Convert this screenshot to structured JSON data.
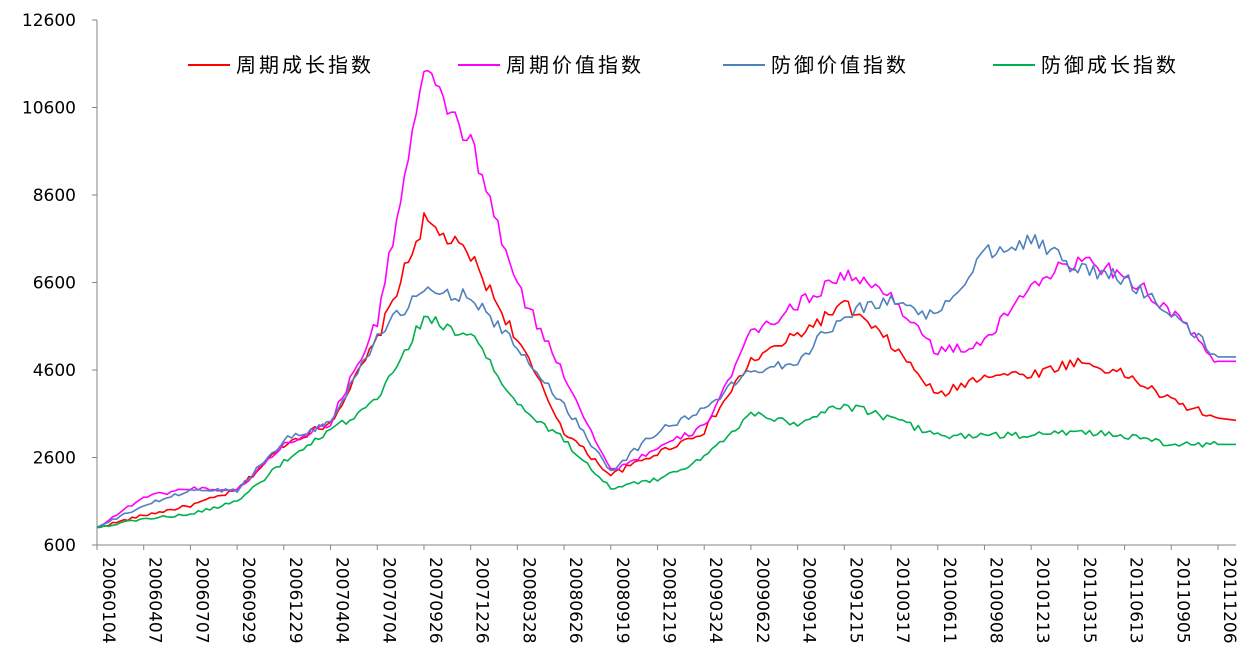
{
  "chart_data": {
    "type": "line",
    "title": "",
    "xlabel": "",
    "ylabel": "",
    "ylim": [
      600,
      12600
    ],
    "yticks": [
      600,
      2600,
      4600,
      6600,
      8600,
      10600,
      12600
    ],
    "grid": false,
    "legend_position": "top",
    "x": [
      "20060104",
      "20060407",
      "20060707",
      "20060929",
      "20061229",
      "20070404",
      "20070704",
      "20070926",
      "20071226",
      "20080328",
      "20080626",
      "20080919",
      "20081219",
      "20090324",
      "20090622",
      "20090914",
      "20091215",
      "20100317",
      "20100611",
      "20100908",
      "20101213",
      "20110315",
      "20110613",
      "20110905",
      "20111206"
    ],
    "series": [
      {
        "name": "周期成长指数",
        "color": "#ff0000",
        "values": [
          1000,
          1280,
          1500,
          1850,
          2900,
          3400,
          5300,
          8000,
          7200,
          5300,
          3200,
          2200,
          2700,
          3200,
          4800,
          5400,
          6100,
          5200,
          4000,
          4500,
          4500,
          4800,
          4500,
          3900,
          3500
        ],
        "end_value": 3450
      },
      {
        "name": "周期价值指数",
        "color": "#ff00ff",
        "values": [
          1000,
          1700,
          1900,
          1850,
          2900,
          3400,
          5700,
          11400,
          9800,
          6500,
          4500,
          2300,
          2800,
          3300,
          5400,
          6100,
          6800,
          6300,
          5000,
          5200,
          6600,
          7100,
          6800,
          5900,
          4800
        ],
        "end_value": 4800
      },
      {
        "name": "防御价值指数",
        "color": "#4f81bd",
        "values": [
          1000,
          1500,
          1850,
          1850,
          3000,
          3400,
          5400,
          6400,
          6300,
          5100,
          3800,
          2300,
          3200,
          3700,
          4600,
          4800,
          5900,
          6200,
          5800,
          7300,
          7600,
          6900,
          6700,
          5900,
          4900
        ],
        "end_value": 4900
      },
      {
        "name": "防御成长指数",
        "color": "#00b050",
        "values": [
          1000,
          1200,
          1300,
          1600,
          2500,
          3200,
          3900,
          5800,
          5400,
          3800,
          3000,
          1900,
          2100,
          2600,
          3600,
          3400,
          3800,
          3500,
          3100,
          3100,
          3100,
          3200,
          3100,
          2900,
          2900
        ],
        "end_value": 2900
      }
    ]
  }
}
